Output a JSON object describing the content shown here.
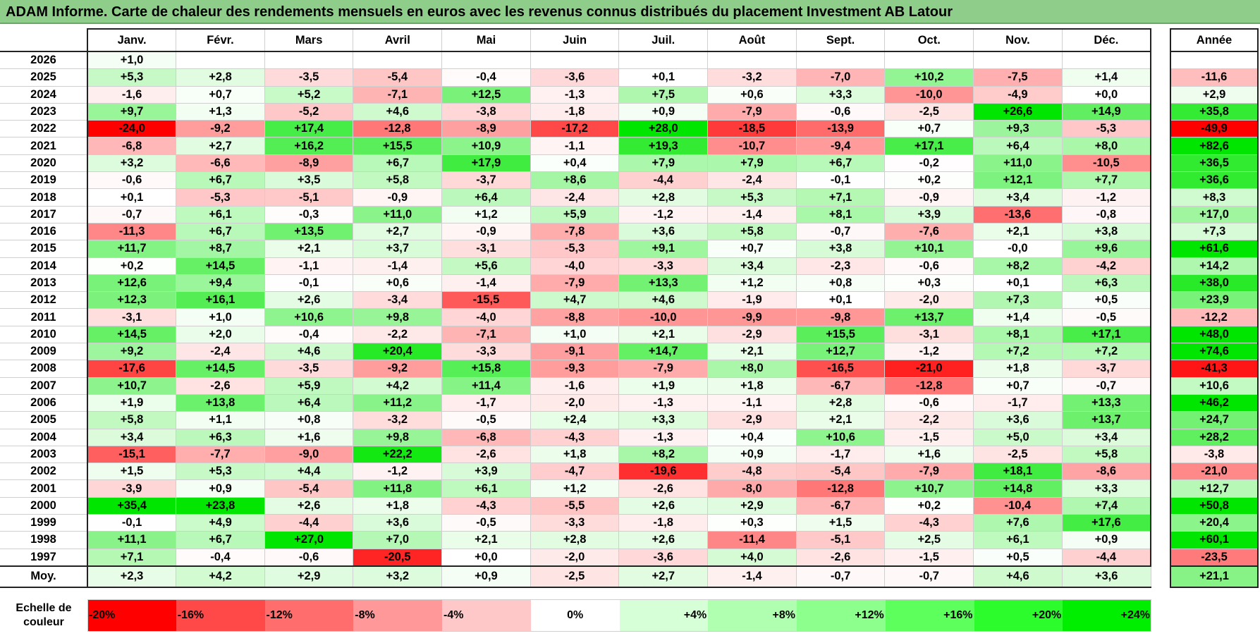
{
  "title": "ADAM Informe. Carte de chaleur des rendements mensuels en euros avec les revenus connus distribués du placement Investment AB Latour",
  "chart_data": {
    "type": "heatmap",
    "months": [
      "Janv.",
      "Févr.",
      "Mars",
      "Avril",
      "Mai",
      "Juin",
      "Juil.",
      "Août",
      "Sept.",
      "Oct.",
      "Nov.",
      "Déc."
    ],
    "annual_header": "Année",
    "rows": [
      {
        "year": "2026",
        "values": [
          "+1,0",
          "",
          "",
          "",
          "",
          "",
          "",
          "",
          "",
          "",
          "",
          ""
        ],
        "annual": ""
      },
      {
        "year": "2025",
        "values": [
          "+5,3",
          "+2,8",
          "-3,5",
          "-5,4",
          "-0,4",
          "-3,6",
          "+0,1",
          "-3,2",
          "-7,0",
          "+10,2",
          "-7,5",
          "+1,4"
        ],
        "annual": "-11,6"
      },
      {
        "year": "2024",
        "values": [
          "-1,6",
          "+0,7",
          "+5,2",
          "-7,1",
          "+12,5",
          "-1,3",
          "+7,5",
          "+0,6",
          "+3,3",
          "-10,0",
          "-4,9",
          "+0,0"
        ],
        "annual": "+2,9"
      },
      {
        "year": "2023",
        "values": [
          "+9,7",
          "+1,3",
          "-5,2",
          "+4,6",
          "-3,8",
          "-1,8",
          "+0,9",
          "-7,9",
          "-0,6",
          "-2,5",
          "+26,6",
          "+14,9"
        ],
        "annual": "+35,8"
      },
      {
        "year": "2022",
        "values": [
          "-24,0",
          "-9,2",
          "+17,4",
          "-12,8",
          "-8,9",
          "-17,2",
          "+28,0",
          "-18,5",
          "-13,9",
          "+0,7",
          "+9,3",
          "-5,3"
        ],
        "annual": "-49,9"
      },
      {
        "year": "2021",
        "values": [
          "-6,8",
          "+2,7",
          "+16,2",
          "+15,5",
          "+10,9",
          "-1,1",
          "+19,3",
          "-10,7",
          "-9,4",
          "+17,1",
          "+6,4",
          "+8,0"
        ],
        "annual": "+82,6"
      },
      {
        "year": "2020",
        "values": [
          "+3,2",
          "-6,6",
          "-8,9",
          "+6,7",
          "+17,9",
          "+0,4",
          "+7,9",
          "+7,9",
          "+6,7",
          "-0,2",
          "+11,0",
          "-10,5"
        ],
        "annual": "+36,5"
      },
      {
        "year": "2019",
        "values": [
          "-0,6",
          "+6,7",
          "+3,5",
          "+5,8",
          "-3,7",
          "+8,6",
          "-4,4",
          "-2,4",
          "-0,1",
          "+0,2",
          "+12,1",
          "+7,7"
        ],
        "annual": "+36,6"
      },
      {
        "year": "2018",
        "values": [
          "+0,1",
          "-5,3",
          "-5,1",
          "-0,9",
          "+6,4",
          "-2,4",
          "+2,8",
          "+5,3",
          "+7,1",
          "-0,9",
          "+3,4",
          "-1,2"
        ],
        "annual": "+8,3"
      },
      {
        "year": "2017",
        "values": [
          "-0,7",
          "+6,1",
          "-0,3",
          "+11,0",
          "+1,2",
          "+5,9",
          "-1,2",
          "-1,4",
          "+8,1",
          "+3,9",
          "-13,6",
          "-0,8"
        ],
        "annual": "+17,0"
      },
      {
        "year": "2016",
        "values": [
          "-11,3",
          "+6,7",
          "+13,5",
          "+2,7",
          "-0,9",
          "-7,8",
          "+3,6",
          "+5,8",
          "-0,7",
          "-7,6",
          "+2,1",
          "+3,8"
        ],
        "annual": "+7,3"
      },
      {
        "year": "2015",
        "values": [
          "+11,7",
          "+8,7",
          "+2,1",
          "+3,7",
          "-3,1",
          "-5,3",
          "+9,1",
          "+0,7",
          "+3,8",
          "+10,1",
          "-0,0",
          "+9,6"
        ],
        "annual": "+61,6"
      },
      {
        "year": "2014",
        "values": [
          "+0,2",
          "+14,5",
          "-1,1",
          "-1,4",
          "+5,6",
          "-4,0",
          "-3,3",
          "+3,4",
          "-2,3",
          "-0,6",
          "+8,2",
          "-4,2"
        ],
        "annual": "+14,2"
      },
      {
        "year": "2013",
        "values": [
          "+12,6",
          "+9,4",
          "-0,1",
          "+0,6",
          "-1,4",
          "-7,9",
          "+13,3",
          "+1,2",
          "+0,8",
          "+0,3",
          "+0,1",
          "+6,3"
        ],
        "annual": "+38,0"
      },
      {
        "year": "2012",
        "values": [
          "+12,3",
          "+16,1",
          "+2,6",
          "-3,4",
          "-15,5",
          "+4,7",
          "+4,6",
          "-1,9",
          "+0,1",
          "-2,0",
          "+7,3",
          "+0,5"
        ],
        "annual": "+23,9"
      },
      {
        "year": "2011",
        "values": [
          "-3,1",
          "+1,0",
          "+10,6",
          "+9,8",
          "-4,0",
          "-8,8",
          "-10,0",
          "-9,9",
          "-9,8",
          "+13,7",
          "+1,4",
          "-0,5"
        ],
        "annual": "-12,2"
      },
      {
        "year": "2010",
        "values": [
          "+14,5",
          "+2,0",
          "-0,4",
          "-2,2",
          "-7,1",
          "+1,0",
          "+2,1",
          "-2,9",
          "+15,5",
          "-3,1",
          "+8,1",
          "+17,1"
        ],
        "annual": "+48,0"
      },
      {
        "year": "2009",
        "values": [
          "+9,2",
          "-2,4",
          "+4,6",
          "+20,4",
          "-3,3",
          "-9,1",
          "+14,7",
          "+2,1",
          "+12,7",
          "-1,2",
          "+7,2",
          "+7,2"
        ],
        "annual": "+74,6"
      },
      {
        "year": "2008",
        "values": [
          "-17,6",
          "+14,5",
          "-3,5",
          "-9,2",
          "+15,8",
          "-9,3",
          "-7,9",
          "+8,0",
          "-16,5",
          "-21,0",
          "+1,8",
          "-3,7"
        ],
        "annual": "-41,3"
      },
      {
        "year": "2007",
        "values": [
          "+10,7",
          "-2,6",
          "+5,9",
          "+4,2",
          "+11,4",
          "-1,6",
          "+1,9",
          "+1,8",
          "-6,7",
          "-12,8",
          "+0,7",
          "-0,7"
        ],
        "annual": "+10,6"
      },
      {
        "year": "2006",
        "values": [
          "+1,9",
          "+13,8",
          "+6,4",
          "+11,2",
          "-1,7",
          "-2,0",
          "-1,3",
          "-1,1",
          "+2,8",
          "-0,6",
          "-1,7",
          "+13,3"
        ],
        "annual": "+46,2"
      },
      {
        "year": "2005",
        "values": [
          "+5,8",
          "+1,1",
          "+0,8",
          "-3,2",
          "-0,5",
          "+2,4",
          "+3,3",
          "-2,9",
          "+2,1",
          "-2,2",
          "+3,6",
          "+13,7"
        ],
        "annual": "+24,7"
      },
      {
        "year": "2004",
        "values": [
          "+3,4",
          "+6,3",
          "+1,6",
          "+9,8",
          "-6,8",
          "-4,3",
          "-1,3",
          "+0,4",
          "+10,6",
          "-1,5",
          "+5,0",
          "+3,4"
        ],
        "annual": "+28,2"
      },
      {
        "year": "2003",
        "values": [
          "-15,1",
          "-7,7",
          "-9,0",
          "+22,2",
          "-2,6",
          "+1,8",
          "+8,2",
          "+0,9",
          "-1,7",
          "+1,6",
          "-2,5",
          "+5,8"
        ],
        "annual": "-3,8"
      },
      {
        "year": "2002",
        "values": [
          "+1,5",
          "+5,3",
          "+4,4",
          "-1,2",
          "+3,9",
          "-4,7",
          "-19,6",
          "-4,8",
          "-5,4",
          "-7,9",
          "+18,1",
          "-8,6"
        ],
        "annual": "-21,0"
      },
      {
        "year": "2001",
        "values": [
          "-3,9",
          "+0,9",
          "-5,4",
          "+11,8",
          "+6,1",
          "+1,2",
          "-2,6",
          "-8,0",
          "-12,8",
          "+10,7",
          "+14,8",
          "+3,3"
        ],
        "annual": "+12,7"
      },
      {
        "year": "2000",
        "values": [
          "+35,4",
          "+23,8",
          "+2,6",
          "+1,8",
          "-4,3",
          "-5,5",
          "+2,6",
          "+2,9",
          "-6,7",
          "+0,2",
          "-10,4",
          "+7,4"
        ],
        "annual": "+50,8"
      },
      {
        "year": "1999",
        "values": [
          "-0,1",
          "+4,9",
          "-4,4",
          "+3,6",
          "-0,5",
          "-3,3",
          "-1,8",
          "+0,3",
          "+1,5",
          "-4,3",
          "+7,6",
          "+17,6"
        ],
        "annual": "+20,4"
      },
      {
        "year": "1998",
        "values": [
          "+11,1",
          "+6,7",
          "+27,0",
          "+7,0",
          "+2,1",
          "+2,8",
          "+2,6",
          "-11,4",
          "-5,1",
          "+2,5",
          "+6,1",
          "+0,9"
        ],
        "annual": "+60,1"
      },
      {
        "year": "1997",
        "values": [
          "+7,1",
          "-0,4",
          "-0,6",
          "-20,5",
          "+0,0",
          "-2,0",
          "-3,6",
          "+4,0",
          "-2,6",
          "-1,5",
          "+0,5",
          "-4,4"
        ],
        "annual": "-23,5"
      }
    ],
    "average": {
      "label": "Moy.",
      "values": [
        "+2,3",
        "+4,2",
        "+2,9",
        "+3,2",
        "+0,9",
        "-2,5",
        "+2,7",
        "-1,4",
        "-0,7",
        "-0,7",
        "+4,6",
        "+3,6"
      ],
      "annual": "+21,1"
    },
    "scale": {
      "label_line1": "Echelle de",
      "label_line2": "couleur",
      "steps": [
        "-20%",
        "-16%",
        "-12%",
        "-8%",
        "-4%",
        "0%",
        "+4%",
        "+8%",
        "+12%",
        "+16%",
        "+20%",
        "+24%"
      ],
      "colors": [
        "#ff0000",
        "#ff4848",
        "#ff6d6d",
        "#ff9898",
        "#ffc8c8",
        "#ffffff",
        "#d7ffd7",
        "#b0ffb0",
        "#8cff8c",
        "#5cff5c",
        "#2cfb2c",
        "#00ee00"
      ]
    },
    "colors": {
      "negative_max": "#ff0000",
      "neutral": "#ffffff",
      "positive_max": "#00e600",
      "title_bar": "#8fce8a"
    }
  }
}
